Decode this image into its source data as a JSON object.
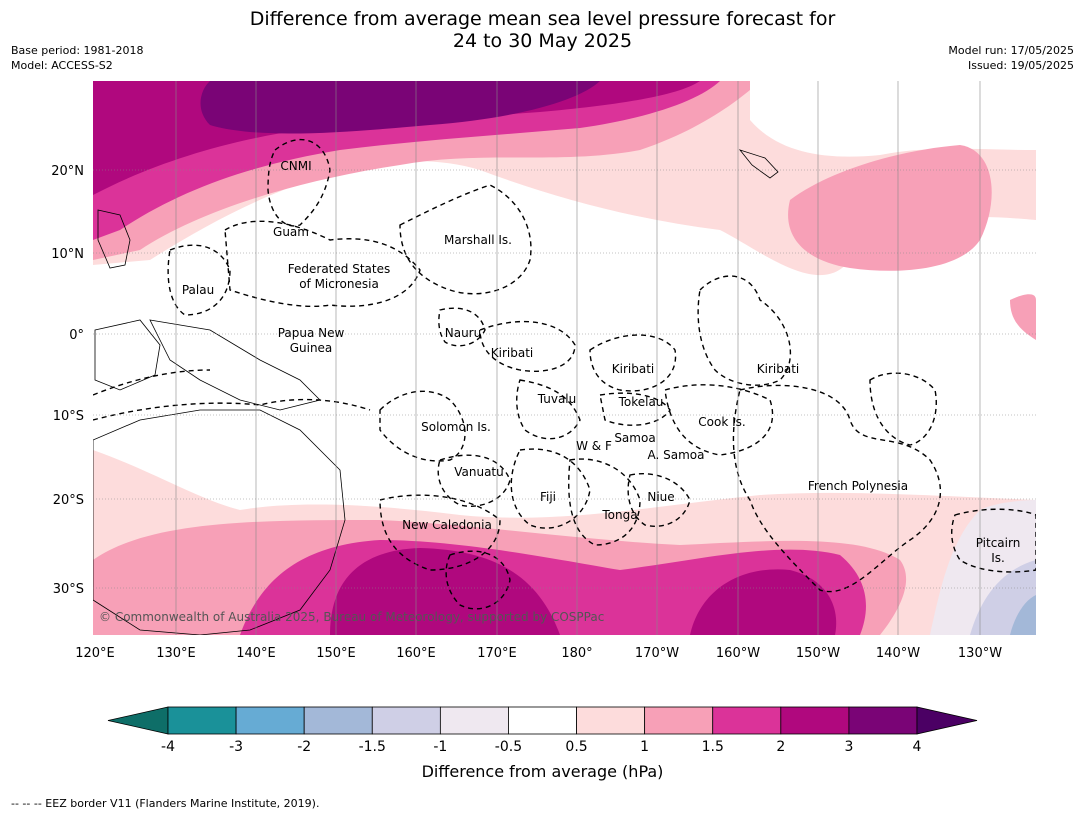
{
  "title_line1": "Difference from average mean sea level pressure forecast for",
  "title_line2": "24 to 30 May 2025",
  "left_meta": {
    "base_period": "Base period: 1981-2018",
    "model": "Model: ACCESS-S2"
  },
  "right_meta": {
    "model_run": "Model run: 17/05/2025",
    "issued": "Issued: 19/05/2025"
  },
  "lat_ticks": [
    "20°N",
    "10°N",
    "0°",
    "10°S",
    "20°S",
    "30°S"
  ],
  "lon_ticks": [
    "120°E",
    "130°E",
    "140°E",
    "150°E",
    "160°E",
    "170°E",
    "180°",
    "170°W",
    "160°W",
    "150°W",
    "140°W",
    "130°W"
  ],
  "regions": [
    "CNMI",
    "Guam",
    "Marshall Is.",
    "Federated States",
    "of Micronesia",
    "Palau",
    "Papua New",
    "Guinea",
    "Nauru",
    "Kiribati",
    "Kiribati",
    "Kiribati",
    "Tuvalu",
    "Tokelau",
    "Cook Is.",
    "Solomon Is.",
    "W & F",
    "Samoa",
    "A. Samoa",
    "Vanuatu",
    "Fiji",
    "Niue",
    "Tonga",
    "French Polynesia",
    "New Caledonia",
    "Pitcairn",
    "Is."
  ],
  "copyright": "© Commonwealth of Australia 2025, Bureau of Meteorology, supported by COSPPac",
  "colorbar": {
    "ticks": [
      "-4",
      "-3",
      "-2",
      "-1.5",
      "-1",
      "-0.5",
      "0.5",
      "1",
      "1.5",
      "2",
      "3",
      "4"
    ],
    "colors": [
      "#0e6e68",
      "#1a9199",
      "#66abd4",
      "#a3b8d8",
      "#cfcfe6",
      "#efe8f0",
      "#ffffff",
      "#fddcdc",
      "#f7a0b7",
      "#db3399",
      "#b0087e",
      "#7a0476",
      "#4b0064"
    ],
    "label": "Difference from average (hPa)"
  },
  "footnote": "--  --  -- EEZ border V11 (Flanders Marine Institute, 2019)."
}
